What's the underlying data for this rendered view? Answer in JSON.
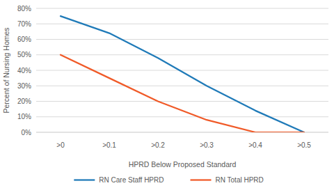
{
  "chart_data": {
    "type": "line",
    "x_label": "HPRD Below Proposed Standard",
    "y_label": "Percent of Nursing Homes",
    "categories": [
      ">0",
      ">0.1",
      ">0.2",
      ">0.3",
      ">0.4",
      ">0.5"
    ],
    "series": [
      {
        "name": "RN Care Staff HPRD",
        "color": "#1f7ab8",
        "values": [
          75,
          64,
          48,
          30,
          14,
          0
        ]
      },
      {
        "name": "RN Total HPRD",
        "color": "#f05a28",
        "values": [
          50,
          35,
          20,
          8,
          0,
          0
        ]
      }
    ],
    "ylim": [
      0,
      80
    ],
    "yticks": [
      {
        "value": 0,
        "label": "0%"
      },
      {
        "value": 10,
        "label": "10%"
      },
      {
        "value": 20,
        "label": "20%"
      },
      {
        "value": 30,
        "label": "30%"
      },
      {
        "value": 40,
        "label": "40%"
      },
      {
        "value": 50,
        "label": "50%"
      },
      {
        "value": 60,
        "label": "60%"
      },
      {
        "value": 70,
        "label": "70%"
      },
      {
        "value": 80,
        "label": "80%"
      }
    ],
    "grid": true,
    "legend": "bottom",
    "marker": "none"
  }
}
